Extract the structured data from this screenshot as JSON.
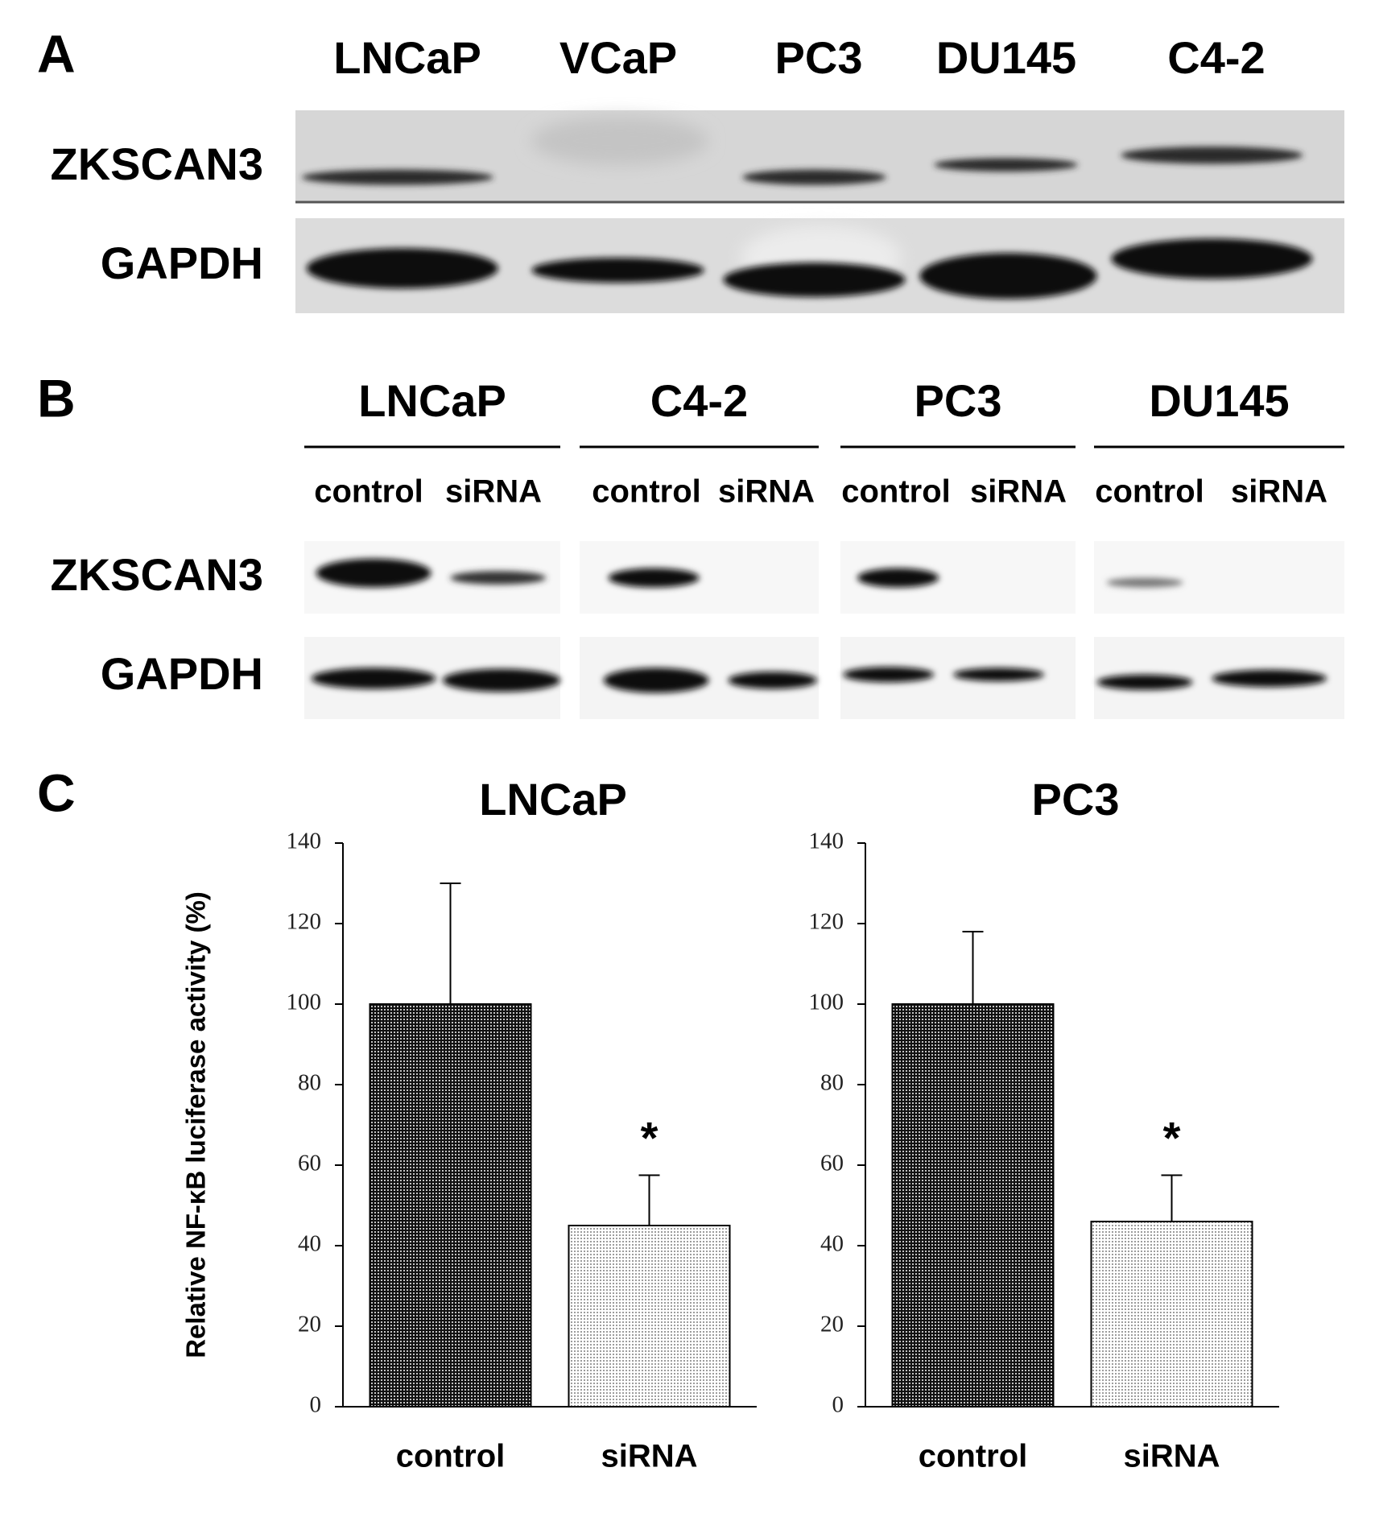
{
  "panel_a": {
    "letter": "A",
    "lanes": [
      "LNCaP",
      "VCaP",
      "PC3",
      "DU145",
      "C4-2"
    ],
    "rows": [
      "ZKSCAN3",
      "GAPDH"
    ]
  },
  "panel_b": {
    "letter": "B",
    "groups": [
      {
        "name": "LNCaP",
        "lanes": [
          "control",
          "siRNA"
        ]
      },
      {
        "name": "C4-2",
        "lanes": [
          "control",
          "siRNA"
        ]
      },
      {
        "name": "PC3",
        "lanes": [
          "control",
          "siRNA"
        ]
      },
      {
        "name": "DU145",
        "lanes": [
          "control",
          "siRNA"
        ]
      }
    ],
    "rows": [
      "ZKSCAN3",
      "GAPDH"
    ]
  },
  "panel_c": {
    "letter": "C"
  },
  "chart_data": [
    {
      "type": "bar",
      "title": "LNCaP",
      "y_label": "Relative NF-κB luciferase activity (%)",
      "categories": [
        "control",
        "siRNA"
      ],
      "values": [
        100,
        45
      ],
      "errors": [
        30,
        12.5
      ],
      "annotations": [
        null,
        "*"
      ],
      "colors": [
        "#111111",
        "#dddddd"
      ],
      "ylim": [
        0,
        140
      ],
      "yticks": [
        0,
        20,
        40,
        60,
        80,
        100,
        120,
        140
      ]
    },
    {
      "type": "bar",
      "title": "PC3",
      "categories": [
        "control",
        "siRNA"
      ],
      "values": [
        100,
        46
      ],
      "errors": [
        18,
        11.5
      ],
      "annotations": [
        null,
        "*"
      ],
      "colors": [
        "#111111",
        "#dddddd"
      ],
      "ylim": [
        0,
        140
      ],
      "yticks": [
        0,
        20,
        40,
        60,
        80,
        100,
        120,
        140
      ]
    }
  ]
}
